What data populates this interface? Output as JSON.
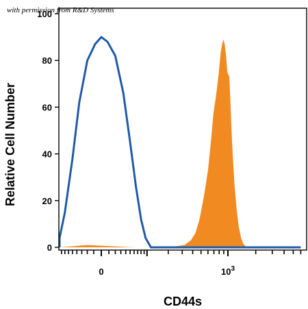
{
  "credit": "with permission from R&D Systems",
  "chart_data": {
    "type": "area",
    "title": "",
    "xlabel": "CD44s",
    "ylabel": "Relative Cell Number",
    "xscale": "biexponential",
    "ylim": [
      0,
      100
    ],
    "yticks": [
      0,
      20,
      40,
      60,
      80,
      100
    ],
    "xtick_labels": [
      {
        "text": "0",
        "at": 0
      },
      {
        "text": "10",
        "sup": "3",
        "at": 1000
      }
    ],
    "grid": false,
    "legend": "none",
    "series": [
      {
        "style": "outline",
        "color": "#1f5aa6",
        "points": [
          [
            -200,
            0
          ],
          [
            -120,
            0
          ],
          [
            -90,
            4
          ],
          [
            -70,
            15
          ],
          [
            -50,
            38
          ],
          [
            -35,
            62
          ],
          [
            -20,
            80
          ],
          [
            -8,
            87
          ],
          [
            0,
            90
          ],
          [
            8,
            88
          ],
          [
            20,
            82
          ],
          [
            35,
            66
          ],
          [
            50,
            45
          ],
          [
            65,
            26
          ],
          [
            80,
            12
          ],
          [
            95,
            4
          ],
          [
            115,
            0
          ],
          [
            6000,
            0
          ]
        ]
      },
      {
        "style": "filled",
        "color": "#f28a22",
        "points": [
          [
            -120,
            0
          ],
          [
            -20,
            1
          ],
          [
            60,
            0
          ],
          [
            200,
            0
          ],
          [
            260,
            0.5
          ],
          [
            320,
            1
          ],
          [
            380,
            3
          ],
          [
            430,
            6
          ],
          [
            480,
            12
          ],
          [
            540,
            22
          ],
          [
            600,
            33
          ],
          [
            650,
            46
          ],
          [
            690,
            57
          ],
          [
            740,
            65
          ],
          [
            790,
            74
          ],
          [
            830,
            83
          ],
          [
            865,
            87
          ],
          [
            890,
            89
          ],
          [
            920,
            87
          ],
          [
            955,
            82
          ],
          [
            985,
            75
          ],
          [
            1010,
            74
          ],
          [
            1035,
            73
          ],
          [
            1060,
            64
          ],
          [
            1090,
            52
          ],
          [
            1130,
            39
          ],
          [
            1180,
            27
          ],
          [
            1240,
            17
          ],
          [
            1310,
            9
          ],
          [
            1390,
            4
          ],
          [
            1470,
            1.5
          ],
          [
            1550,
            0.5
          ],
          [
            1650,
            0
          ]
        ]
      }
    ]
  }
}
